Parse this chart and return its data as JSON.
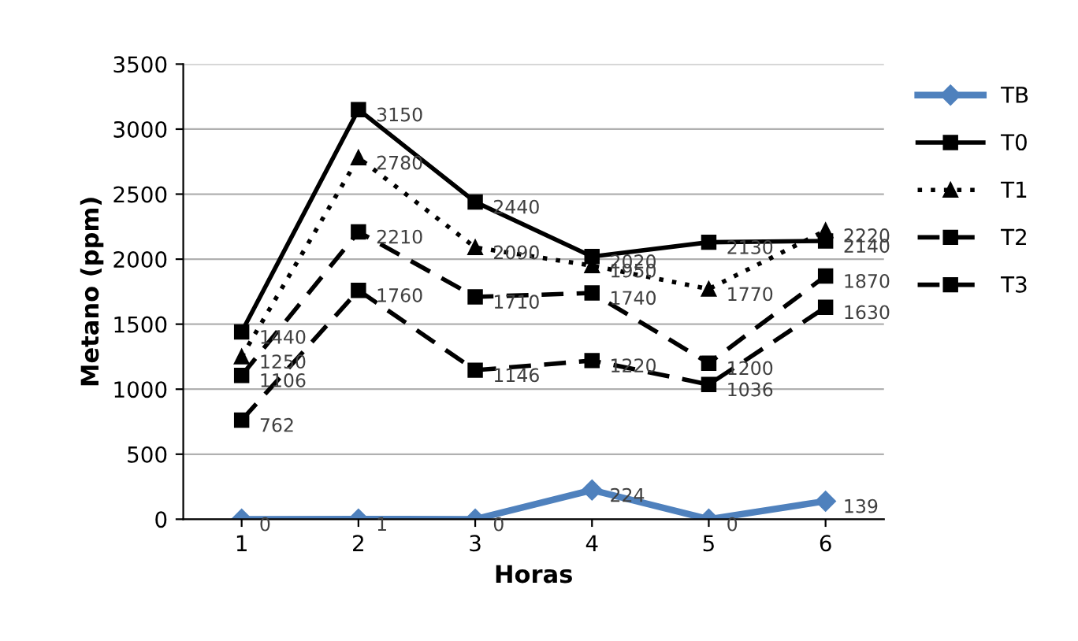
{
  "chart_data": {
    "type": "line",
    "xlabel": "Horas",
    "ylabel": "Metano (ppm)",
    "categories": [
      "1",
      "2",
      "3",
      "4",
      "5",
      "6"
    ],
    "series": [
      {
        "name": "TB",
        "color": "#4f81bd",
        "marker": "diamond",
        "line_style": "solid",
        "values": [
          0,
          1,
          0,
          224,
          0,
          139
        ]
      },
      {
        "name": "T0",
        "color": "#000000",
        "marker": "square",
        "line_style": "solid",
        "values": [
          1440,
          3150,
          2440,
          2020,
          2130,
          2140
        ]
      },
      {
        "name": "T1",
        "color": "#000000",
        "marker": "triangle",
        "line_style": "dotted",
        "values": [
          1250,
          2780,
          2090,
          1950,
          1770,
          2220
        ]
      },
      {
        "name": "T2",
        "color": "#000000",
        "marker": "square",
        "line_style": "dashed",
        "values": [
          1106,
          2210,
          1710,
          1740,
          1200,
          1870
        ]
      },
      {
        "name": "T3",
        "color": "#000000",
        "marker": "square",
        "line_style": "dashed",
        "values": [
          762,
          1760,
          1146,
          1220,
          1036,
          1630
        ]
      }
    ],
    "ylim": [
      0,
      3500
    ],
    "yticks": [
      0,
      500,
      1000,
      1500,
      2000,
      2500,
      3000,
      3500
    ],
    "grid": "y",
    "legend": "right",
    "data_labels": true
  }
}
